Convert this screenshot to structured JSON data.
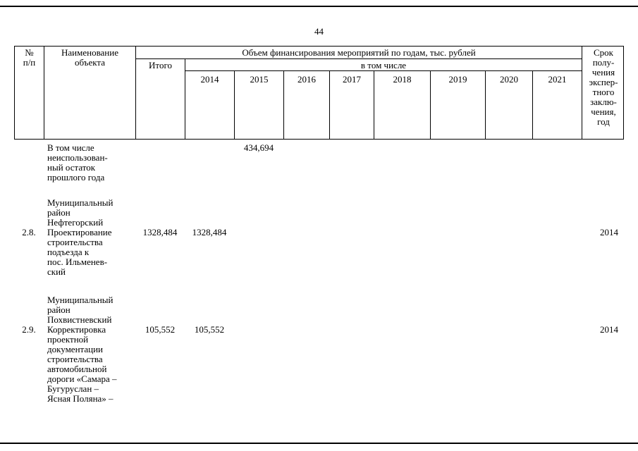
{
  "page": {
    "number": "44"
  },
  "table": {
    "header": {
      "num": "№\nп/п",
      "name": "Наименование\nобъекта",
      "financing": "Объем финансирования мероприятий по годам, тыс. рублей",
      "itogo": "Итого",
      "including": "в том числе",
      "years": [
        "2014",
        "2015",
        "2016",
        "2017",
        "2018",
        "2019",
        "2020",
        "2021"
      ],
      "term": "Срок\nполу-\nчения\nэкспер-\nтного\nзаклю-\nчения,\nгод"
    },
    "rows": [
      {
        "num": "",
        "name": "В том числе\nнеиспользован-\nный остаток\nпрошлого года",
        "itogo": "",
        "y2014": "",
        "y2015": "434,694",
        "y2016": "",
        "y2017": "",
        "y2018": "",
        "y2019": "",
        "y2020": "",
        "y2021": "",
        "term": ""
      },
      {
        "num": "2.8.",
        "name": "Муниципальный\nрайон\nНефтегорский\nПроектирование\nстроительства\nподъезда к\nпос. Ильменев-\nский",
        "itogo": "1328,484",
        "y2014": "1328,484",
        "y2015": "",
        "y2016": "",
        "y2017": "",
        "y2018": "",
        "y2019": "",
        "y2020": "",
        "y2021": "",
        "term": "2014"
      },
      {
        "num": "2.9.",
        "name": "Муниципальный\nрайон\nПохвистневский\nКорректировка\nпроектной\nдокументации\nстроительства\nавтомобильной\nдороги «Самара –\nБугуруслан –\nЯсная Поляна» –",
        "itogo": "105,552",
        "y2014": "105,552",
        "y2015": "",
        "y2016": "",
        "y2017": "",
        "y2018": "",
        "y2019": "",
        "y2020": "",
        "y2021": "",
        "term": "2014"
      }
    ]
  }
}
